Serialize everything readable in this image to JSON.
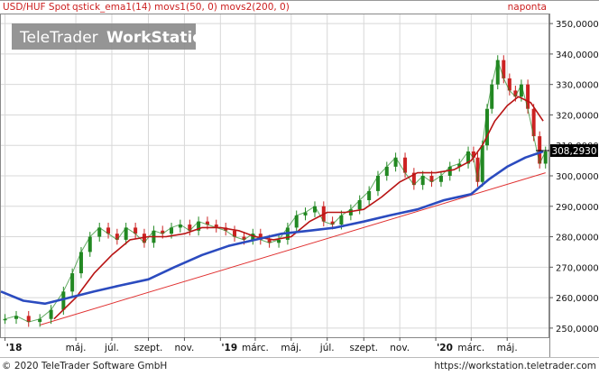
{
  "header": {
    "instrument": "USD/HUF Spot",
    "indicators": "qstick_ema1(14) movs1(50, 0) movs2(200, 0)",
    "period": "naponta"
  },
  "watermark": {
    "text_light": "TeleTrader",
    "text_bold": "WorkStation"
  },
  "footer": {
    "copyright": "© 2020 TeleTrader Software GmbH",
    "url": "https://workstation.teletrader.com"
  },
  "colors": {
    "price_candles": "#228822",
    "price_candles_down": "#cc2222",
    "ma50": "#b81414",
    "ma200": "#2b4bbf",
    "trendline": "#e03030",
    "last_price_box": "#000000",
    "header_text": "#cc2020",
    "grid": "#d8d8d8"
  },
  "chart_data": {
    "type": "line",
    "title": "USD/HUF Spot",
    "ylim": [
      247,
      353
    ],
    "y_ticks": [
      "250,0000",
      "260,0000",
      "270,0000",
      "280,0000",
      "290,0000",
      "300,0000",
      "310,0000",
      "320,0000",
      "330,0000",
      "340,0000",
      "350,0000"
    ],
    "y_tick_values": [
      250,
      260,
      270,
      280,
      290,
      300,
      310,
      320,
      330,
      340,
      350
    ],
    "x_ticks": [
      "'18",
      "máj.",
      "júl.",
      "szept.",
      "nov.",
      "'19",
      "márc.",
      "máj.",
      "júl.",
      "szept.",
      "nov.",
      "'20",
      "márc.",
      "máj."
    ],
    "x_tick_dates": [
      "2018-01-01",
      "2018-05-01",
      "2018-07-01",
      "2018-09-01",
      "2018-11-01",
      "2019-01-01",
      "2019-03-01",
      "2019-05-01",
      "2019-07-01",
      "2019-09-01",
      "2019-11-01",
      "2020-01-01",
      "2020-03-01",
      "2020-05-01"
    ],
    "x_range": [
      "2017-12-25",
      "2020-07-10"
    ],
    "last_price_label": "308,2930",
    "last_price": 308.293,
    "series": [
      {
        "name": "USD/HUF Spot",
        "dates": [
          "2018-01-01",
          "2018-01-20",
          "2018-02-10",
          "2018-03-01",
          "2018-03-20",
          "2018-04-10",
          "2018-04-25",
          "2018-05-10",
          "2018-05-25",
          "2018-06-10",
          "2018-06-25",
          "2018-07-10",
          "2018-07-25",
          "2018-08-10",
          "2018-08-25",
          "2018-09-10",
          "2018-09-25",
          "2018-10-10",
          "2018-10-25",
          "2018-11-10",
          "2018-11-25",
          "2018-12-10",
          "2018-12-25",
          "2019-01-10",
          "2019-01-25",
          "2019-02-10",
          "2019-02-25",
          "2019-03-10",
          "2019-03-25",
          "2019-04-10",
          "2019-04-25",
          "2019-05-10",
          "2019-05-25",
          "2019-06-10",
          "2019-06-25",
          "2019-07-10",
          "2019-07-25",
          "2019-08-10",
          "2019-08-25",
          "2019-09-10",
          "2019-09-25",
          "2019-10-10",
          "2019-10-25",
          "2019-11-10",
          "2019-11-25",
          "2019-12-10",
          "2019-12-25",
          "2020-01-10",
          "2020-01-25",
          "2020-02-10",
          "2020-02-25",
          "2020-03-05",
          "2020-03-12",
          "2020-03-20",
          "2020-03-28",
          "2020-04-05",
          "2020-04-15",
          "2020-04-25",
          "2020-05-05",
          "2020-05-15",
          "2020-05-25",
          "2020-06-05",
          "2020-06-15",
          "2020-06-25",
          "2020-07-05"
        ],
        "values": [
          253,
          254,
          252,
          253,
          256,
          262,
          268,
          275,
          280,
          283,
          281,
          279,
          283,
          281,
          278,
          282,
          281,
          283,
          284,
          282,
          285,
          284,
          283,
          282,
          280,
          279,
          281,
          279,
          278,
          279,
          283,
          287,
          288,
          290,
          285,
          284,
          287,
          289,
          292,
          295,
          300,
          303,
          306,
          301,
          297,
          300,
          298,
          300,
          303,
          304,
          308,
          306,
          298,
          310,
          322,
          330,
          338,
          332,
          328,
          326,
          330,
          322,
          313,
          304,
          308
        ]
      },
      {
        "name": "movs1(50, 0)",
        "dates": [
          "2018-03-25",
          "2018-05-01",
          "2018-06-01",
          "2018-07-01",
          "2018-08-01",
          "2018-09-01",
          "2018-10-01",
          "2018-11-01",
          "2018-12-01",
          "2019-01-01",
          "2019-02-01",
          "2019-03-01",
          "2019-04-01",
          "2019-05-01",
          "2019-06-01",
          "2019-07-01",
          "2019-08-01",
          "2019-09-01",
          "2019-10-01",
          "2019-11-01",
          "2019-12-01",
          "2020-01-01",
          "2020-02-01",
          "2020-03-01",
          "2020-03-20",
          "2020-04-10",
          "2020-05-01",
          "2020-05-20",
          "2020-06-10",
          "2020-07-01"
        ],
        "values": [
          253,
          260,
          268,
          274,
          279,
          280,
          280,
          281,
          283,
          283,
          282,
          280,
          279,
          280,
          285,
          288,
          288,
          289,
          293,
          298,
          301,
          301,
          302,
          305,
          310,
          318,
          323,
          326,
          324,
          318
        ]
      },
      {
        "name": "movs2(200, 0)",
        "dates": [
          "2017-12-25",
          "2018-02-01",
          "2018-03-10",
          "2018-04-20",
          "2018-06-01",
          "2018-07-15",
          "2018-09-01",
          "2018-10-15",
          "2018-12-01",
          "2019-01-15",
          "2019-03-01",
          "2019-04-15",
          "2019-06-01",
          "2019-07-15",
          "2019-09-01",
          "2019-10-15",
          "2019-12-01",
          "2020-01-15",
          "2020-03-01",
          "2020-04-01",
          "2020-05-01",
          "2020-06-01",
          "2020-07-01"
        ],
        "values": [
          262,
          259,
          258,
          260,
          262,
          264,
          266,
          270,
          274,
          277,
          279,
          281,
          282,
          283,
          285,
          287,
          289,
          292,
          294,
          299,
          303,
          306,
          308
        ]
      },
      {
        "name": "trendline",
        "dates": [
          "2018-03-01",
          "2020-07-05"
        ],
        "values": [
          251,
          301
        ]
      }
    ]
  }
}
